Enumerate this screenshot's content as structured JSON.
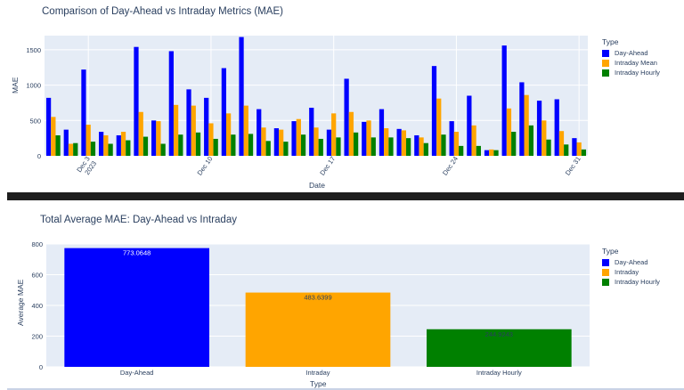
{
  "colors": {
    "day_ahead": "#0000ff",
    "intraday": "#ffa500",
    "hourly": "#008000",
    "plot_bg": "#e5ecf6"
  },
  "chart_data": [
    {
      "type": "bar",
      "title": "Comparison of Day-Ahead vs Intraday Metrics (MAE)",
      "xlabel": "Date",
      "ylabel": "MAE",
      "ylim": [
        0,
        1700
      ],
      "yticks": [
        0,
        500,
        1000,
        1500
      ],
      "x_tick_labels": [
        {
          "day": 3,
          "lines": [
            "Dec 3",
            "2023"
          ]
        },
        {
          "day": 10,
          "lines": [
            "Dec 10"
          ]
        },
        {
          "day": 17,
          "lines": [
            "Dec 17"
          ]
        },
        {
          "day": 24,
          "lines": [
            "Dec 24"
          ]
        },
        {
          "day": 31,
          "lines": [
            "Dec 31"
          ]
        }
      ],
      "legend_title": "Type",
      "legend_position": "right",
      "grid": true,
      "days": [
        1,
        2,
        3,
        4,
        5,
        6,
        7,
        8,
        9,
        10,
        11,
        12,
        13,
        14,
        15,
        16,
        17,
        18,
        19,
        20,
        21,
        22,
        23,
        24,
        25,
        26,
        27,
        28,
        29,
        30,
        31
      ],
      "series": [
        {
          "name": "Day-Ahead",
          "values": [
            820,
            370,
            1220,
            340,
            290,
            1540,
            500,
            1480,
            940,
            820,
            1240,
            1680,
            660,
            390,
            490,
            680,
            370,
            1090,
            480,
            660,
            380,
            290,
            1270,
            490,
            850,
            80,
            1560,
            1040,
            780,
            800,
            250
          ]
        },
        {
          "name": "Intraday Mean",
          "values": [
            550,
            170,
            440,
            290,
            340,
            620,
            490,
            720,
            710,
            460,
            600,
            710,
            400,
            370,
            520,
            400,
            600,
            620,
            500,
            390,
            360,
            260,
            810,
            340,
            430,
            90,
            670,
            860,
            500,
            350,
            190
          ]
        },
        {
          "name": "Intraday Hourly",
          "values": [
            290,
            180,
            200,
            170,
            220,
            270,
            170,
            300,
            330,
            240,
            300,
            310,
            210,
            200,
            300,
            240,
            260,
            330,
            260,
            260,
            250,
            180,
            300,
            140,
            140,
            80,
            340,
            430,
            230,
            160,
            90
          ]
        }
      ]
    },
    {
      "type": "bar",
      "title": "Total Average MAE: Day-Ahead vs Intraday",
      "xlabel": "Type",
      "ylabel": "Average MAE",
      "ylim": [
        0,
        800
      ],
      "yticks": [
        0,
        200,
        400,
        600,
        800
      ],
      "categories": [
        "Day-Ahead",
        "Intraday",
        "Intraday Hourly"
      ],
      "values": [
        773.0648,
        483.6399,
        244.9243
      ],
      "data_labels": [
        "773.0648",
        "483.6399",
        "244.9243"
      ],
      "legend_title": "Type",
      "legend": [
        "Day-Ahead",
        "Intraday",
        "Intraday Hourly"
      ],
      "legend_position": "right",
      "grid": true
    }
  ]
}
